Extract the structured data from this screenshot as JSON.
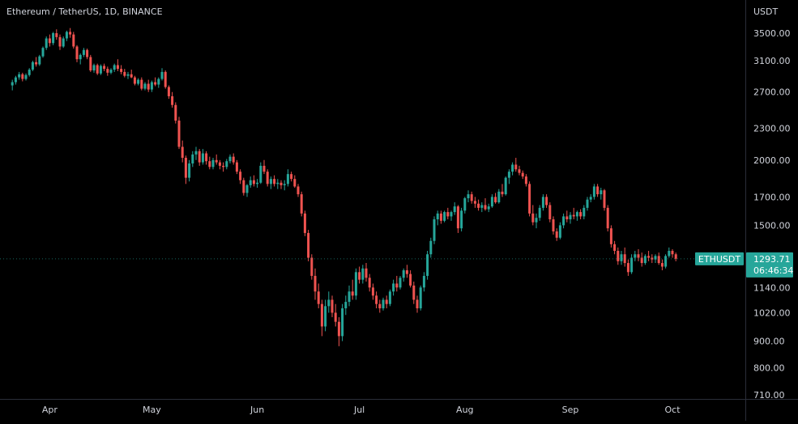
{
  "header": {
    "title": "Ethereum / TetherUS, 1D, BINANCE"
  },
  "price_axis": {
    "currency": "USDT"
  },
  "price_label": {
    "symbol": "ETHUSDT",
    "price": "1293.71",
    "countdown": "06:46:34"
  },
  "colors": {
    "up": "#26a69a",
    "down": "#ef5350",
    "background": "#000000",
    "text": "#d1d4dc"
  },
  "chart_data": {
    "type": "candlestick",
    "symbol": "ETHUSDT",
    "interval": "1D",
    "exchange": "BINANCE",
    "y_scale": "log",
    "ylim": [
      700,
      4000
    ],
    "y_ticks": [
      "3500.00",
      "3100.00",
      "2700.00",
      "2300.00",
      "2000.00",
      "1700.00",
      "1500.00",
      "1140.00",
      "1020.00",
      "900.00",
      "800.00",
      "710.00"
    ],
    "x_ticks": [
      "Apr",
      "May",
      "Jun",
      "Jul",
      "Aug",
      "Sep",
      "Oct"
    ],
    "x_tick_days": [
      1,
      31,
      62,
      92,
      123,
      154,
      184
    ],
    "first_day": -10,
    "last_price": 1293.71,
    "candles": [
      [
        2780,
        2850,
        2720,
        2820
      ],
      [
        2820,
        2900,
        2790,
        2880
      ],
      [
        2880,
        2950,
        2850,
        2920
      ],
      [
        2920,
        2940,
        2830,
        2860
      ],
      [
        2860,
        2930,
        2840,
        2910
      ],
      [
        2910,
        3000,
        2890,
        2980
      ],
      [
        2980,
        3100,
        2960,
        3080
      ],
      [
        3080,
        3150,
        3020,
        3050
      ],
      [
        3050,
        3180,
        3030,
        3160
      ],
      [
        3160,
        3300,
        3140,
        3280
      ],
      [
        3280,
        3450,
        3250,
        3420
      ],
      [
        3420,
        3480,
        3300,
        3350
      ],
      [
        3350,
        3520,
        3320,
        3500
      ],
      [
        3500,
        3560,
        3400,
        3440
      ],
      [
        3440,
        3480,
        3250,
        3300
      ],
      [
        3300,
        3450,
        3280,
        3420
      ],
      [
        3420,
        3540,
        3380,
        3520
      ],
      [
        3520,
        3580,
        3430,
        3480
      ],
      [
        3480,
        3520,
        3270,
        3300
      ],
      [
        3300,
        3320,
        3080,
        3120
      ],
      [
        3120,
        3200,
        3050,
        3180
      ],
      [
        3180,
        3280,
        3150,
        3250
      ],
      [
        3250,
        3270,
        3120,
        3150
      ],
      [
        3150,
        3180,
        2950,
        2970
      ],
      [
        2970,
        3060,
        2940,
        3040
      ],
      [
        3040,
        3060,
        2910,
        2930
      ],
      [
        2930,
        3050,
        2910,
        3030
      ],
      [
        3030,
        3060,
        2960,
        2990
      ],
      [
        2990,
        3020,
        2900,
        2940
      ],
      [
        2940,
        3000,
        2920,
        2980
      ],
      [
        2980,
        3060,
        2950,
        3040
      ],
      [
        3040,
        3120,
        2960,
        2990
      ],
      [
        2990,
        3040,
        2920,
        2950
      ],
      [
        2950,
        2990,
        2880,
        2900
      ],
      [
        2900,
        2950,
        2860,
        2920
      ],
      [
        2920,
        2980,
        2870,
        2880
      ],
      [
        2880,
        2900,
        2780,
        2800
      ],
      [
        2800,
        2870,
        2780,
        2850
      ],
      [
        2850,
        2880,
        2720,
        2740
      ],
      [
        2740,
        2820,
        2720,
        2800
      ],
      [
        2800,
        2850,
        2700,
        2730
      ],
      [
        2730,
        2840,
        2700,
        2820
      ],
      [
        2820,
        2880,
        2770,
        2790
      ],
      [
        2790,
        2880,
        2750,
        2860
      ],
      [
        2860,
        3000,
        2840,
        2950
      ],
      [
        2950,
        2970,
        2740,
        2760
      ],
      [
        2760,
        2780,
        2620,
        2650
      ],
      [
        2650,
        2700,
        2520,
        2550
      ],
      [
        2550,
        2580,
        2350,
        2380
      ],
      [
        2380,
        2420,
        2100,
        2120
      ],
      [
        2120,
        2180,
        1980,
        2020
      ],
      [
        2020,
        2040,
        1800,
        1850
      ],
      [
        1850,
        2000,
        1820,
        1970
      ],
      [
        1970,
        2080,
        1940,
        2050
      ],
      [
        2050,
        2120,
        2000,
        2080
      ],
      [
        2080,
        2100,
        1950,
        1980
      ],
      [
        1980,
        2100,
        1960,
        2060
      ],
      [
        2060,
        2080,
        1960,
        1990
      ],
      [
        1990,
        2030,
        1920,
        1940
      ],
      [
        1940,
        2020,
        1920,
        2000
      ],
      [
        2000,
        2050,
        1960,
        1980
      ],
      [
        1980,
        2000,
        1920,
        1950
      ],
      [
        1950,
        1980,
        1900,
        1940
      ],
      [
        1940,
        2010,
        1920,
        1990
      ],
      [
        1990,
        2050,
        1970,
        2030
      ],
      [
        2030,
        2060,
        1960,
        1980
      ],
      [
        1980,
        2000,
        1880,
        1900
      ],
      [
        1900,
        1920,
        1800,
        1830
      ],
      [
        1830,
        1850,
        1710,
        1730
      ],
      [
        1730,
        1800,
        1700,
        1790
      ],
      [
        1790,
        1860,
        1770,
        1830
      ],
      [
        1830,
        1870,
        1780,
        1800
      ],
      [
        1800,
        1840,
        1770,
        1810
      ],
      [
        1810,
        1980,
        1800,
        1950
      ],
      [
        1950,
        2000,
        1880,
        1900
      ],
      [
        1900,
        1920,
        1780,
        1800
      ],
      [
        1800,
        1860,
        1760,
        1840
      ],
      [
        1840,
        1870,
        1780,
        1800
      ],
      [
        1800,
        1840,
        1760,
        1810
      ],
      [
        1810,
        1830,
        1760,
        1790
      ],
      [
        1790,
        1830,
        1750,
        1800
      ],
      [
        1800,
        1920,
        1780,
        1880
      ],
      [
        1880,
        1900,
        1820,
        1840
      ],
      [
        1840,
        1870,
        1770,
        1780
      ],
      [
        1780,
        1800,
        1700,
        1720
      ],
      [
        1720,
        1740,
        1560,
        1580
      ],
      [
        1580,
        1600,
        1430,
        1450
      ],
      [
        1450,
        1470,
        1280,
        1300
      ],
      [
        1300,
        1320,
        1180,
        1200
      ],
      [
        1200,
        1240,
        1080,
        1120
      ],
      [
        1120,
        1160,
        1040,
        1060
      ],
      [
        1060,
        1080,
        920,
        960
      ],
      [
        960,
        1080,
        940,
        1050
      ],
      [
        1050,
        1120,
        1020,
        1080
      ],
      [
        1080,
        1100,
        1000,
        1020
      ],
      [
        1020,
        1060,
        960,
        980
      ],
      [
        980,
        1000,
        880,
        920
      ],
      [
        920,
        1060,
        900,
        1040
      ],
      [
        1040,
        1100,
        1010,
        1070
      ],
      [
        1070,
        1150,
        1050,
        1120
      ],
      [
        1120,
        1180,
        1080,
        1100
      ],
      [
        1100,
        1240,
        1080,
        1220
      ],
      [
        1220,
        1250,
        1160,
        1180
      ],
      [
        1180,
        1260,
        1160,
        1240
      ],
      [
        1240,
        1270,
        1170,
        1190
      ],
      [
        1190,
        1210,
        1120,
        1140
      ],
      [
        1140,
        1160,
        1080,
        1100
      ],
      [
        1100,
        1120,
        1040,
        1060
      ],
      [
        1060,
        1080,
        1020,
        1040
      ],
      [
        1040,
        1090,
        1030,
        1080
      ],
      [
        1080,
        1100,
        1040,
        1060
      ],
      [
        1060,
        1130,
        1050,
        1120
      ],
      [
        1120,
        1180,
        1100,
        1160
      ],
      [
        1160,
        1200,
        1120,
        1140
      ],
      [
        1140,
        1200,
        1130,
        1190
      ],
      [
        1190,
        1240,
        1170,
        1230
      ],
      [
        1230,
        1260,
        1190,
        1210
      ],
      [
        1210,
        1230,
        1140,
        1150
      ],
      [
        1150,
        1170,
        1060,
        1080
      ],
      [
        1080,
        1100,
        1020,
        1040
      ],
      [
        1040,
        1150,
        1030,
        1140
      ],
      [
        1140,
        1220,
        1120,
        1200
      ],
      [
        1200,
        1340,
        1180,
        1320
      ],
      [
        1320,
        1420,
        1300,
        1400
      ],
      [
        1400,
        1560,
        1380,
        1540
      ],
      [
        1540,
        1600,
        1500,
        1580
      ],
      [
        1580,
        1600,
        1510,
        1530
      ],
      [
        1530,
        1600,
        1520,
        1590
      ],
      [
        1590,
        1620,
        1540,
        1560
      ],
      [
        1560,
        1600,
        1530,
        1590
      ],
      [
        1590,
        1660,
        1570,
        1630
      ],
      [
        1630,
        1640,
        1450,
        1480
      ],
      [
        1480,
        1620,
        1460,
        1600
      ],
      [
        1600,
        1700,
        1580,
        1690
      ],
      [
        1690,
        1750,
        1660,
        1720
      ],
      [
        1720,
        1740,
        1650,
        1670
      ],
      [
        1670,
        1700,
        1620,
        1650
      ],
      [
        1650,
        1680,
        1600,
        1620
      ],
      [
        1620,
        1660,
        1590,
        1640
      ],
      [
        1640,
        1690,
        1600,
        1610
      ],
      [
        1610,
        1650,
        1590,
        1630
      ],
      [
        1630,
        1720,
        1620,
        1700
      ],
      [
        1700,
        1730,
        1650,
        1660
      ],
      [
        1660,
        1760,
        1650,
        1740
      ],
      [
        1740,
        1800,
        1700,
        1720
      ],
      [
        1720,
        1860,
        1710,
        1850
      ],
      [
        1850,
        1920,
        1800,
        1900
      ],
      [
        1900,
        1980,
        1870,
        1960
      ],
      [
        1960,
        2020,
        1900,
        1920
      ],
      [
        1920,
        1950,
        1870,
        1890
      ],
      [
        1890,
        1910,
        1840,
        1860
      ],
      [
        1860,
        1880,
        1780,
        1800
      ],
      [
        1800,
        1820,
        1560,
        1580
      ],
      [
        1580,
        1640,
        1500,
        1520
      ],
      [
        1520,
        1580,
        1480,
        1550
      ],
      [
        1550,
        1640,
        1530,
        1620
      ],
      [
        1620,
        1720,
        1600,
        1700
      ],
      [
        1700,
        1720,
        1620,
        1640
      ],
      [
        1640,
        1660,
        1520,
        1540
      ],
      [
        1540,
        1560,
        1440,
        1460
      ],
      [
        1460,
        1480,
        1400,
        1420
      ],
      [
        1420,
        1520,
        1410,
        1500
      ],
      [
        1500,
        1580,
        1480,
        1560
      ],
      [
        1560,
        1600,
        1520,
        1540
      ],
      [
        1540,
        1590,
        1510,
        1570
      ],
      [
        1570,
        1620,
        1540,
        1560
      ],
      [
        1560,
        1600,
        1530,
        1590
      ],
      [
        1590,
        1610,
        1540,
        1560
      ],
      [
        1560,
        1640,
        1540,
        1620
      ],
      [
        1620,
        1700,
        1600,
        1680
      ],
      [
        1680,
        1720,
        1660,
        1700
      ],
      [
        1700,
        1800,
        1680,
        1780
      ],
      [
        1780,
        1800,
        1700,
        1720
      ],
      [
        1720,
        1770,
        1680,
        1750
      ],
      [
        1750,
        1760,
        1600,
        1620
      ],
      [
        1620,
        1640,
        1460,
        1480
      ],
      [
        1480,
        1500,
        1360,
        1380
      ],
      [
        1380,
        1400,
        1320,
        1340
      ],
      [
        1340,
        1360,
        1260,
        1280
      ],
      [
        1280,
        1340,
        1260,
        1320
      ],
      [
        1320,
        1360,
        1250,
        1270
      ],
      [
        1270,
        1290,
        1200,
        1220
      ],
      [
        1220,
        1320,
        1210,
        1300
      ],
      [
        1300,
        1340,
        1280,
        1320
      ],
      [
        1320,
        1350,
        1280,
        1300
      ],
      [
        1300,
        1330,
        1250,
        1270
      ],
      [
        1270,
        1320,
        1260,
        1310
      ],
      [
        1310,
        1340,
        1280,
        1300
      ],
      [
        1300,
        1320,
        1270,
        1290
      ],
      [
        1290,
        1320,
        1270,
        1310
      ],
      [
        1310,
        1330,
        1260,
        1270
      ],
      [
        1270,
        1290,
        1230,
        1250
      ],
      [
        1250,
        1320,
        1240,
        1310
      ],
      [
        1310,
        1360,
        1300,
        1340
      ],
      [
        1340,
        1350,
        1300,
        1320
      ],
      [
        1320,
        1330,
        1280,
        1294
      ]
    ]
  }
}
